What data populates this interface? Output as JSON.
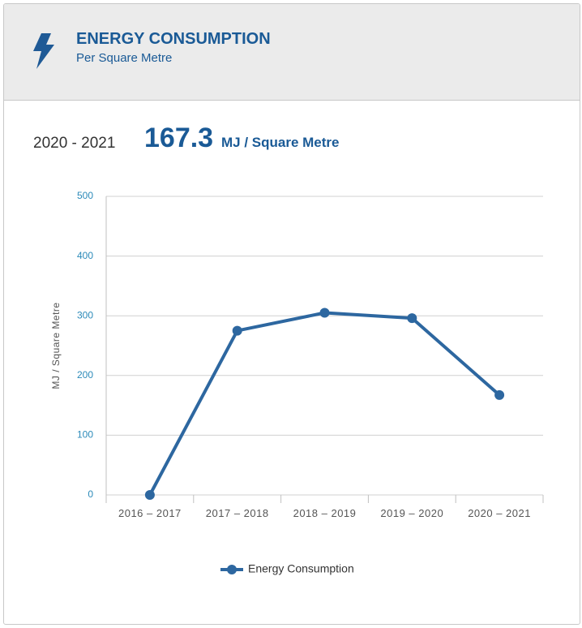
{
  "header": {
    "title": "ENERGY CONSUMPTION",
    "subtitle": "Per Square Metre"
  },
  "summary": {
    "period": "2020 - 2021",
    "value": 167.3,
    "unit": "MJ / Square Metre"
  },
  "chart_data": {
    "type": "line",
    "y_label": "MJ / Square Metre",
    "categories": [
      "2016 – 2017",
      "2017 – 2018",
      "2018 – 2019",
      "2019 – 2020",
      "2020 – 2021"
    ],
    "series": [
      {
        "name": "Energy Consumption",
        "color": "#2d67a0",
        "values": [
          0,
          275,
          305,
          296,
          167.3
        ]
      }
    ],
    "ylim": [
      0,
      500
    ],
    "yticks": [
      0,
      100,
      200,
      300,
      400,
      500
    ],
    "grid": true,
    "legend": "bottom"
  }
}
